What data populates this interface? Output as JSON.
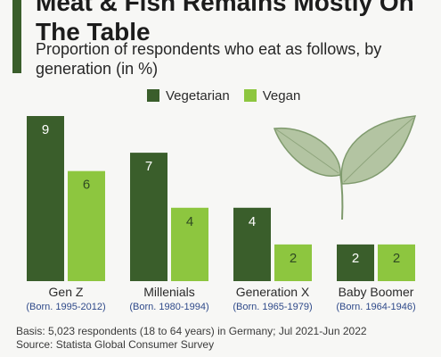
{
  "title": "Meat & Fish Remains Mostly On The Table",
  "subtitle": "Proportion of respondents who eat as follows, by generation (in %)",
  "footer": {
    "basis": "Basis: 5,023 respondents (18 to 64 years) in Germany; Jul 2021-Jun 2022",
    "source": "Source: Statista Global Consumer Survey"
  },
  "colors": {
    "vegetarian": "#3a5e2b",
    "vegan": "#8dc63f",
    "accent": "#3a5e2b"
  },
  "chart_data": {
    "type": "bar",
    "categories": [
      "Gen Z",
      "Millenials",
      "Generation X",
      "Baby Boomer"
    ],
    "category_sublabels": [
      "(Born. 1995-2012)",
      "(Born. 1980-1994)",
      "(Born. 1965-1979)",
      "(Born. 1964-1946)"
    ],
    "series": [
      {
        "name": "Vegetarian",
        "values": [
          9,
          7,
          4,
          2
        ]
      },
      {
        "name": "Vegan",
        "values": [
          6,
          4,
          2,
          2
        ]
      }
    ],
    "ylim": [
      0,
      9
    ],
    "grid": false,
    "legend": "top"
  }
}
